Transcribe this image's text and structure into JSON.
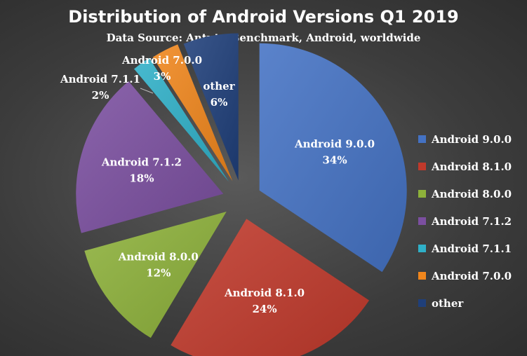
{
  "chart_data": {
    "type": "pie",
    "title": "Distribution of Android Versions Q1 2019",
    "subtitle": "Data Source: Antutu Benchmark, Android, worldwide",
    "legend_position": "right",
    "slices": [
      {
        "name": "Android 9.0.0",
        "value": 34,
        "label": "34%",
        "color": "#4472c4"
      },
      {
        "name": "Android 8.1.0",
        "value": 24,
        "label": "24%",
        "color": "#c0392b"
      },
      {
        "name": "Android 8.0.0",
        "value": 12,
        "label": "12%",
        "color": "#8db13a"
      },
      {
        "name": "Android 7.1.2",
        "value": 18,
        "label": "18%",
        "color": "#7b4fa0"
      },
      {
        "name": "Android 7.1.1",
        "value": 2,
        "label": "2%",
        "color": "#2fb0c8"
      },
      {
        "name": "Android 7.0.0",
        "value": 3,
        "label": "3%",
        "color": "#f0861c"
      },
      {
        "name": "other",
        "value": 6,
        "label": "6%",
        "color": "#1f3f7a"
      }
    ]
  }
}
